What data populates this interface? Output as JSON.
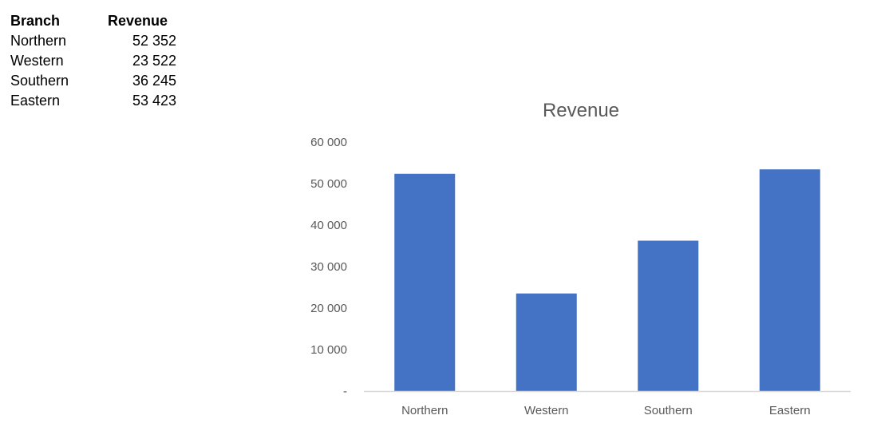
{
  "table": {
    "headers": [
      "Branch",
      "Revenue"
    ],
    "rows": [
      [
        "Northern",
        "52 352"
      ],
      [
        "Western",
        "23 522"
      ],
      [
        "Southern",
        "36 245"
      ],
      [
        "Eastern",
        "53 423"
      ]
    ]
  },
  "chart_data": {
    "type": "bar",
    "title": "Revenue",
    "categories": [
      "Northern",
      "Western",
      "Southern",
      "Eastern"
    ],
    "values": [
      52352,
      23522,
      36245,
      53423
    ],
    "ylim": [
      0,
      60000
    ],
    "yticks": [
      0,
      10000,
      20000,
      30000,
      40000,
      50000,
      60000
    ],
    "ytick_labels": [
      "-",
      "10 000",
      "20 000",
      "30 000",
      "40 000",
      "50 000",
      "60 000"
    ],
    "xlabel": "",
    "ylabel": "",
    "grid": false,
    "legend": "none",
    "bar_color": "#4472C4",
    "axis_color": "#D9D9D9",
    "text_color": "#595959"
  }
}
